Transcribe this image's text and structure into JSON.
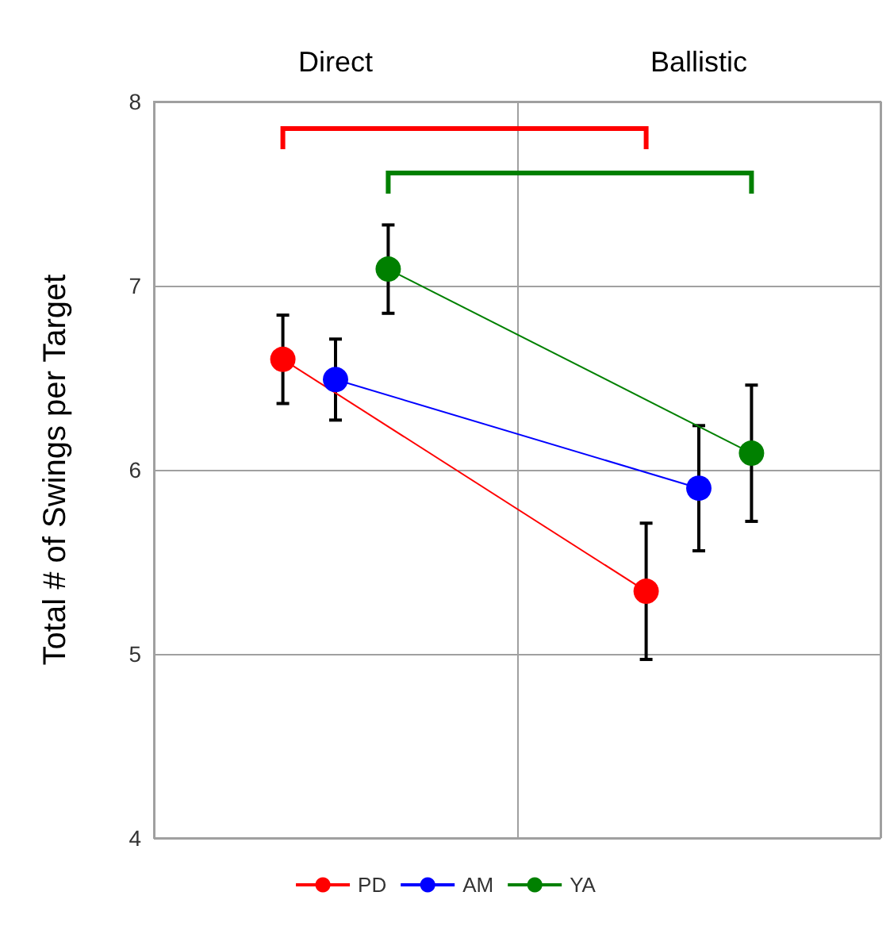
{
  "chart_data": {
    "type": "line",
    "categories": [
      "Direct",
      "Ballistic"
    ],
    "ylabel": "Total # of Swings per Target",
    "ylim": [
      4,
      8
    ],
    "yticks": [
      4,
      5,
      6,
      7,
      8
    ],
    "grid": true,
    "legend": "bottom",
    "marker": "circle",
    "line_style": "solid",
    "series": [
      {
        "name": "PD",
        "color": "#ff0000",
        "values": [
          6.6,
          5.34
        ],
        "errors": [
          0.24,
          0.37
        ]
      },
      {
        "name": "AM",
        "color": "#0000ff",
        "values": [
          6.49,
          5.9
        ],
        "errors": [
          0.22,
          0.34
        ]
      },
      {
        "name": "YA",
        "color": "#008000",
        "values": [
          7.09,
          6.09
        ],
        "errors": [
          0.24,
          0.37
        ]
      }
    ]
  }
}
